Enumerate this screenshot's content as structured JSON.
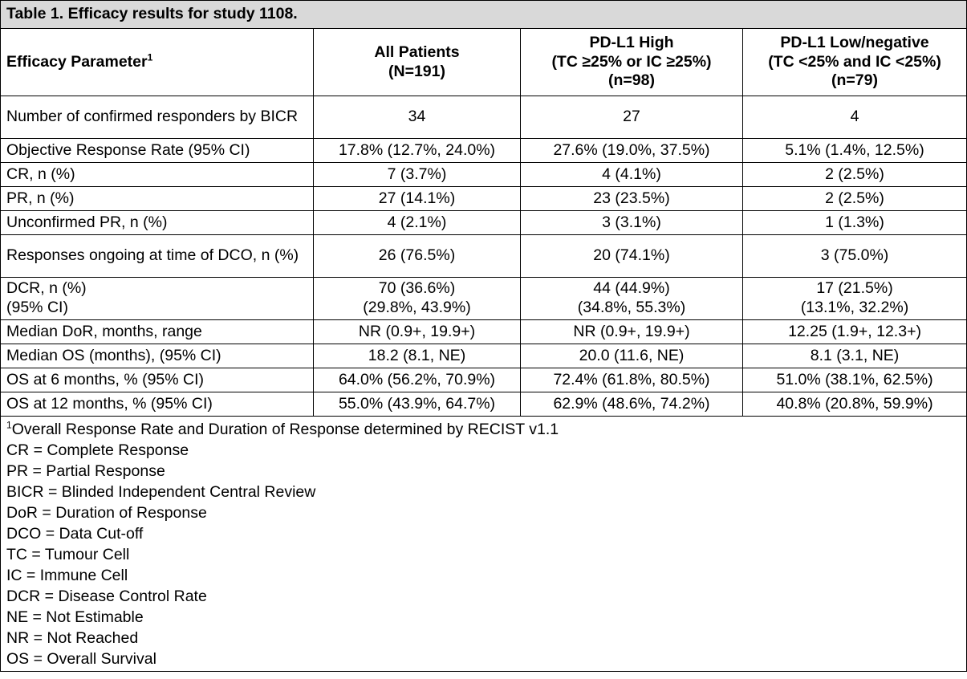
{
  "table": {
    "caption": "Table 1. Efficacy results for study 1108.",
    "header": {
      "param_label": "Efficacy Parameter",
      "param_sup": "1",
      "all_line1": "All Patients",
      "all_line2": "(N=191)",
      "high_line1": "PD-L1 High",
      "high_line2": "(TC ≥25% or IC ≥25%)",
      "high_line3": "(n=98)",
      "low_line1": "PD-L1 Low/negative",
      "low_line2": "(TC <25% and IC <25%)",
      "low_line3": "(n=79)"
    },
    "rows": [
      {
        "param": "Number of confirmed responders by BICR",
        "all": "34",
        "high": "27",
        "low": "4"
      },
      {
        "param": "Objective Response Rate (95% CI)",
        "all": "17.8% (12.7%, 24.0%)",
        "high": "27.6% (19.0%, 37.5%)",
        "low": "5.1% (1.4%, 12.5%)"
      },
      {
        "param": "CR, n (%)",
        "all": "7 (3.7%)",
        "high": "4 (4.1%)",
        "low": "2 (2.5%)"
      },
      {
        "param": "PR, n (%)",
        "all": "27 (14.1%)",
        "high": "23 (23.5%)",
        "low": "2 (2.5%)"
      },
      {
        "param": "Unconfirmed PR, n (%)",
        "all": "4 (2.1%)",
        "high": "3 (3.1%)",
        "low": "1 (1.3%)"
      },
      {
        "param": "Responses ongoing at time of DCO, n (%)",
        "all": "26 (76.5%)",
        "high": "20 (74.1%)",
        "low": "3 (75.0%)"
      },
      {
        "param_line1": "DCR, n (%)",
        "param_line2": "(95% CI)",
        "all_line1": "70 (36.6%)",
        "all_line2": "(29.8%, 43.9%)",
        "high_line1": "44 (44.9%)",
        "high_line2": "(34.8%, 55.3%)",
        "low_line1": "17 (21.5%)",
        "low_line2": "(13.1%, 32.2%)"
      },
      {
        "param": "Median DoR, months, range",
        "all": "NR (0.9+, 19.9+)",
        "high": "NR (0.9+, 19.9+)",
        "low": "12.25 (1.9+, 12.3+)"
      },
      {
        "param": "Median OS (months), (95% CI)",
        "all": "18.2 (8.1, NE)",
        "high": "20.0 (11.6, NE)",
        "low": "8.1 (3.1, NE)"
      },
      {
        "param": "OS at 6 months, % (95% CI)",
        "all": "64.0% (56.2%, 70.9%)",
        "high": "72.4% (61.8%, 80.5%)",
        "low": "51.0% (38.1%, 62.5%)"
      },
      {
        "param": "OS at 12 months, % (95% CI)",
        "all": "55.0% (43.9%, 64.7%)",
        "high": "62.9% (48.6%, 74.2%)",
        "low": "40.8% (20.8%, 59.9%)"
      }
    ],
    "footnotes": {
      "first_sup": "1",
      "first_text": "Overall Response Rate and Duration of Response determined by RECIST v1.1",
      "items": [
        "CR = Complete Response",
        "PR = Partial Response",
        "BICR = Blinded Independent Central Review",
        "DoR = Duration of Response",
        "DCO = Data Cut-off",
        "TC = Tumour Cell",
        "IC = Immune Cell",
        "DCR = Disease Control Rate",
        "NE = Not Estimable",
        "NR = Not Reached",
        "OS = Overall Survival"
      ]
    }
  }
}
